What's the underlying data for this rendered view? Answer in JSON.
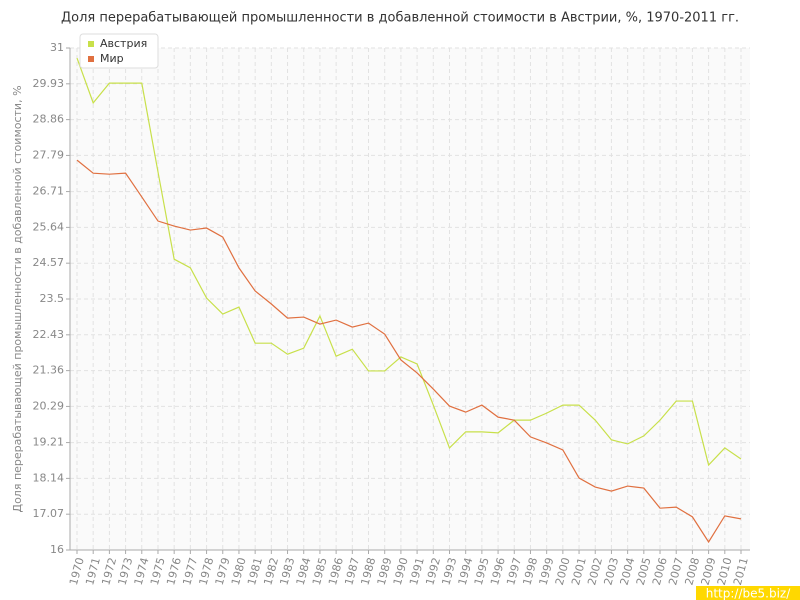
{
  "chart_data": {
    "type": "line",
    "title": "Доля перерабатывающей промышленности в добавленной стоимости в Австрии, %, 1970-2011 гг.",
    "y_label": "Доля перерабатывающей промышленности в добавленной стоимости, %",
    "watermark": "http://be5.biz/",
    "categories": [
      "1970",
      "1971",
      "1972",
      "1973",
      "1974",
      "1975",
      "1976",
      "1977",
      "1978",
      "1979",
      "1980",
      "1981",
      "1982",
      "1983",
      "1984",
      "1985",
      "1986",
      "1987",
      "1988",
      "1989",
      "1990",
      "1991",
      "1992",
      "1993",
      "1994",
      "1995",
      "1996",
      "1997",
      "1998",
      "1999",
      "2000",
      "2001",
      "2002",
      "2003",
      "2004",
      "2005",
      "2006",
      "2007",
      "2008",
      "2009",
      "2010",
      "2011"
    ],
    "series": [
      {
        "name": "Австрия",
        "color": "#c8e04a",
        "values": [
          30.7,
          29.36,
          29.95,
          29.95,
          29.95,
          27.3,
          24.69,
          24.43,
          23.53,
          23.05,
          23.26,
          22.18,
          22.18,
          21.85,
          22.03,
          22.99,
          21.79,
          22.0,
          21.35,
          21.35,
          21.77,
          21.56,
          20.33,
          19.05,
          19.53,
          19.53,
          19.5,
          19.88,
          19.88,
          20.09,
          20.33,
          20.33,
          19.88,
          19.29,
          19.17,
          19.41,
          19.88,
          20.45,
          20.45,
          18.54,
          19.05,
          18.72
        ]
      },
      {
        "name": "Мир",
        "color": "#e07040",
        "values": [
          27.65,
          27.26,
          27.23,
          27.26,
          26.55,
          25.83,
          25.68,
          25.56,
          25.62,
          25.35,
          24.43,
          23.74,
          23.35,
          22.93,
          22.96,
          22.75,
          22.87,
          22.66,
          22.78,
          22.45,
          21.68,
          21.29,
          20.81,
          20.3,
          20.12,
          20.33,
          19.97,
          19.88,
          19.38,
          19.2,
          18.99,
          18.15,
          17.88,
          17.76,
          17.91,
          17.85,
          17.25,
          17.28,
          16.99,
          16.24,
          17.02,
          16.93
        ]
      }
    ],
    "ylim": [
      16,
      31
    ],
    "yticks": [
      16,
      17.07,
      18.14,
      19.21,
      20.29,
      21.36,
      22.43,
      23.5,
      24.57,
      25.64,
      26.71,
      27.79,
      28.86,
      29.93,
      31
    ],
    "grid": true,
    "legend": "top-left"
  }
}
